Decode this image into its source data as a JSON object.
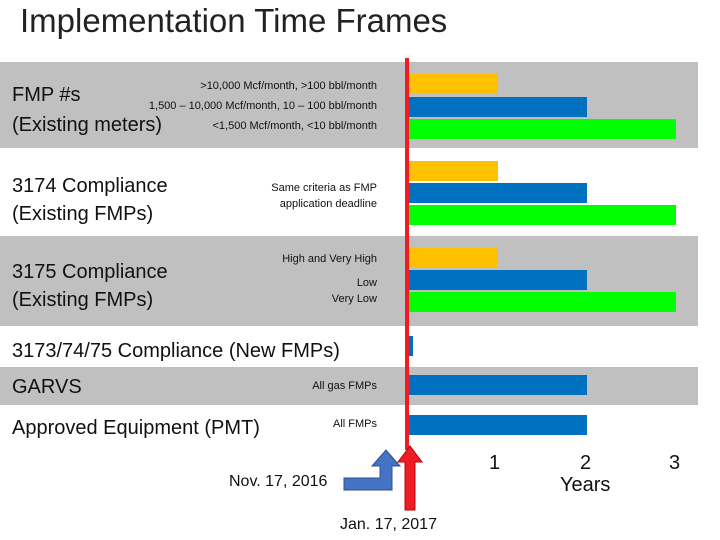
{
  "title": "Implementation Time Frames",
  "colors": {
    "high": "#ffc000",
    "medium": "#0070c0",
    "low": "#00ff00",
    "marker": "#ee1c24",
    "arrow": "#4472c4",
    "band": "#c0c0c0"
  },
  "rows": {
    "fmp": {
      "label_line1": "FMP #s",
      "label_line2": "(Existing meters)",
      "criteria_1": ">10,000 Mcf/month, >100 bbl/month",
      "criteria_2": "1,500 – 10,000 Mcf/month, 10 – 100 bbl/month",
      "criteria_3": "<1,500 Mcf/month, <10 bbl/month"
    },
    "c3174": {
      "label_line1": "3174 Compliance",
      "label_line2": "(Existing FMPs)",
      "criteria_line1": "Same criteria as FMP",
      "criteria_line2": "application deadline"
    },
    "c3175": {
      "label_line1": "3175 Compliance",
      "label_line2": "(Existing FMPs)",
      "criteria_1": "High and Very High",
      "criteria_2": "Low",
      "criteria_3": "Very Low"
    },
    "new": {
      "label": "3173/74/75 Compliance (New FMPs)"
    },
    "garvs": {
      "label": "GARVS",
      "criteria": "All gas FMPs"
    },
    "pmt": {
      "label": "Approved Equipment (PMT)",
      "criteria": "All FMPs"
    }
  },
  "annotations": {
    "nov": "Nov. 17, 2016",
    "jan": "Jan. 17, 2017"
  },
  "chart_data": {
    "type": "bar",
    "orientation": "horizontal",
    "title": "Implementation Time Frames",
    "xlabel": "Years",
    "x_ticks": [
      "1",
      "2",
      "3"
    ],
    "xlim": [
      0,
      3
    ],
    "origin_marker": "Jan. 17, 2017",
    "bars": [
      {
        "group": "FMP #s",
        "name": ">10,000 Mcf/month, >100 bbl/month",
        "value": 1,
        "color_key": "high"
      },
      {
        "group": "FMP #s",
        "name": "1,500 – 10,000 Mcf/month, 10 – 100 bbl/month",
        "value": 2,
        "color_key": "medium"
      },
      {
        "group": "FMP #s",
        "name": "<1,500 Mcf/month, <10 bbl/month",
        "value": 3,
        "color_key": "low"
      },
      {
        "group": "3174 Compliance",
        "name": "Same criteria as FMP application deadline",
        "value": 1,
        "color_key": "high"
      },
      {
        "group": "3174 Compliance",
        "name": "Same criteria as FMP application deadline",
        "value": 2,
        "color_key": "medium"
      },
      {
        "group": "3174 Compliance",
        "name": "Same criteria as FMP application deadline",
        "value": 3,
        "color_key": "low"
      },
      {
        "group": "3175 Compliance",
        "name": "High and Very High",
        "value": 1,
        "color_key": "high"
      },
      {
        "group": "3175 Compliance",
        "name": "Low",
        "value": 2,
        "color_key": "medium"
      },
      {
        "group": "3175 Compliance",
        "name": "Very Low",
        "value": 3,
        "color_key": "low"
      },
      {
        "group": "3173/74/75 Compliance (New FMPs)",
        "name": "New FMPs",
        "value": 0.05,
        "color_key": "medium"
      },
      {
        "group": "GARVS",
        "name": "All gas FMPs",
        "value": 2,
        "color_key": "medium"
      },
      {
        "group": "Approved Equipment (PMT)",
        "name": "All FMPs",
        "value": 2,
        "color_key": "medium"
      }
    ]
  }
}
